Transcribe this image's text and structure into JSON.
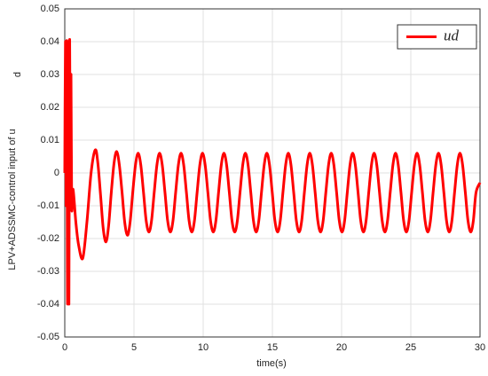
{
  "chart_data": {
    "type": "line",
    "y_label": "LPV+ADSSMC-control input of u",
    "y_label_subscript": "d",
    "x_label": "time(s)",
    "xlim": [
      0,
      30
    ],
    "xticks": [
      0,
      5,
      10,
      15,
      20,
      25,
      30
    ],
    "ylim": [
      -0.05,
      0.05
    ],
    "yticks": [
      -0.05,
      -0.04,
      -0.03,
      -0.02,
      -0.01,
      0,
      0.01,
      0.02,
      0.03,
      0.04,
      0.05
    ],
    "grid": true,
    "legend": "upper right",
    "x": [
      0,
      0.05,
      0.1,
      0.15,
      0.2,
      0.25,
      0.3,
      0.35,
      0.4,
      0.45,
      0.5,
      0.6,
      0.8,
      1.0,
      1.3,
      1.6,
      1.9,
      2.2,
      2.39,
      2.59,
      2.78,
      2.98,
      3.17,
      3.36,
      3.56,
      3.75,
      3.94,
      4.14,
      4.33,
      4.53,
      4.72,
      4.91,
      5.11,
      5.3,
      5.49,
      5.69,
      5.88,
      6.08,
      6.27,
      6.46,
      6.66,
      6.85,
      7.04,
      7.24,
      7.43,
      7.63,
      7.82,
      8.01,
      8.21,
      8.4,
      8.59,
      8.79,
      8.98,
      9.18,
      9.37,
      9.56,
      9.76,
      9.95,
      10.14,
      10.34,
      10.53,
      10.73,
      10.92,
      11.11,
      11.31,
      11.5,
      11.69,
      11.89,
      12.08,
      12.28,
      12.47,
      12.66,
      12.86,
      13.05,
      13.24,
      13.44,
      13.63,
      13.83,
      14.02,
      14.21,
      14.41,
      14.6,
      14.79,
      14.99,
      15.18,
      15.38,
      15.57,
      15.76,
      15.96,
      16.15,
      16.34,
      16.54,
      16.73,
      16.93,
      17.12,
      17.31,
      17.51,
      17.7,
      17.89,
      18.09,
      18.28,
      18.48,
      18.67,
      18.86,
      19.06,
      19.25,
      19.44,
      19.64,
      19.83,
      20.03,
      20.22,
      20.41,
      20.61,
      20.8,
      20.99,
      21.19,
      21.38,
      21.58,
      21.77,
      21.96,
      22.16,
      22.35,
      22.54,
      22.74,
      22.93,
      23.13,
      23.32,
      23.51,
      23.71,
      23.9,
      24.09,
      24.29,
      24.48,
      24.68,
      24.87,
      25.06,
      25.26,
      25.45,
      25.64,
      25.84,
      26.03,
      26.23,
      26.42,
      26.61,
      26.81,
      27.0,
      27.19,
      27.39,
      27.58,
      27.78,
      27.97,
      28.16,
      28.36,
      28.55,
      28.74,
      28.94,
      29.13,
      29.33,
      29.52,
      29.71,
      30
    ],
    "series": [
      {
        "name": "ud",
        "color": "#ff0000",
        "values": [
          0,
          0.04,
          -0.01,
          0.04,
          -0.04,
          0.04,
          -0.04,
          0.04,
          0,
          0.03,
          -0.01,
          -0.005,
          -0.015,
          -0.022,
          -0.026,
          -0.015,
          0,
          0.007,
          0.003,
          -0.007,
          -0.017,
          -0.021,
          -0.016,
          -0.006,
          0.003,
          0.0065,
          0.0025,
          -0.006,
          -0.015,
          -0.019,
          -0.015,
          -0.006,
          0.0025,
          0.006,
          0.0025,
          -0.006,
          -0.0145,
          -0.018,
          -0.0145,
          -0.006,
          0.0025,
          0.006,
          0.0025,
          -0.006,
          -0.0145,
          -0.018,
          -0.0145,
          -0.006,
          0.0025,
          0.006,
          0.0025,
          -0.006,
          -0.0145,
          -0.018,
          -0.0145,
          -0.006,
          0.0025,
          0.006,
          0.0025,
          -0.006,
          -0.0145,
          -0.018,
          -0.0145,
          -0.006,
          0.0025,
          0.006,
          0.0025,
          -0.006,
          -0.0145,
          -0.018,
          -0.0145,
          -0.006,
          0.0025,
          0.006,
          0.0025,
          -0.006,
          -0.0145,
          -0.018,
          -0.0145,
          -0.006,
          0.0025,
          0.006,
          0.0025,
          -0.006,
          -0.0145,
          -0.018,
          -0.0145,
          -0.006,
          0.0025,
          0.006,
          0.0025,
          -0.006,
          -0.0145,
          -0.018,
          -0.0145,
          -0.006,
          0.0025,
          0.006,
          0.0025,
          -0.006,
          -0.0145,
          -0.018,
          -0.0145,
          -0.006,
          0.0025,
          0.006,
          0.0025,
          -0.006,
          -0.0145,
          -0.018,
          -0.0145,
          -0.006,
          0.0025,
          0.006,
          0.0025,
          -0.006,
          -0.0145,
          -0.018,
          -0.0145,
          -0.006,
          0.0025,
          0.006,
          0.0025,
          -0.006,
          -0.0145,
          -0.018,
          -0.0145,
          -0.006,
          0.0025,
          0.006,
          0.0025,
          -0.006,
          -0.0145,
          -0.018,
          -0.0145,
          -0.006,
          0.0025,
          0.006,
          0.0025,
          -0.006,
          -0.0145,
          -0.018,
          -0.0145,
          -0.006,
          0.0025,
          0.006,
          0.0025,
          -0.006,
          -0.0145,
          -0.018,
          -0.0145,
          -0.006,
          0.0025,
          0.006,
          0.0025,
          -0.006,
          -0.0145,
          -0.018,
          -0.0145,
          -0.006,
          -0.003
        ]
      }
    ]
  }
}
